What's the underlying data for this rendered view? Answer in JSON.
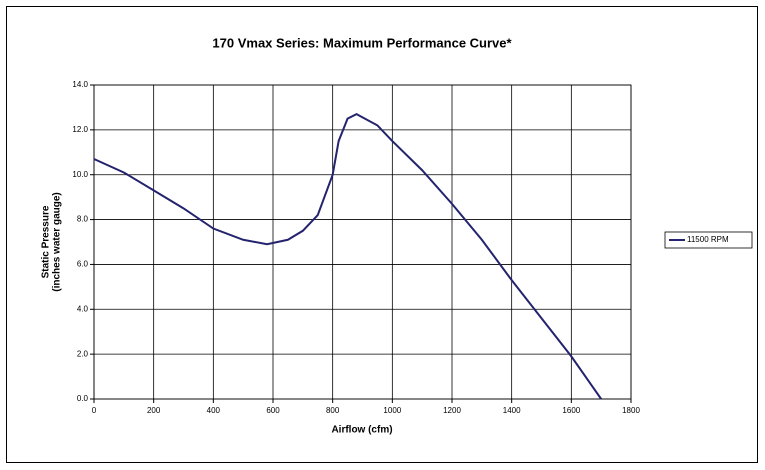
{
  "chart_data": {
    "type": "line",
    "title": "170 Vmax Series: Maximum Performance Curve*",
    "x_label": "Airflow (cfm)",
    "y_label": [
      "Static Pressure",
      "(inches water gauge)"
    ],
    "x": [
      0,
      100,
      200,
      300,
      400,
      500,
      580,
      650,
      700,
      750,
      800,
      820,
      850,
      880,
      950,
      1000,
      1100,
      1200,
      1300,
      1400,
      1500,
      1600,
      1700
    ],
    "series": [
      {
        "name": "11500 RPM",
        "color": "#23236e",
        "values": [
          10.7,
          10.1,
          9.3,
          8.5,
          7.6,
          7.1,
          6.9,
          7.1,
          7.5,
          8.2,
          10.0,
          11.5,
          12.5,
          12.7,
          12.2,
          11.5,
          10.2,
          8.7,
          7.1,
          5.3,
          3.6,
          1.9,
          0.0
        ]
      }
    ],
    "xlim": [
      0,
      1800
    ],
    "xticks": [
      0,
      200,
      400,
      600,
      800,
      1000,
      1200,
      1400,
      1600,
      1800
    ],
    "ylim": [
      0,
      14
    ],
    "yticks": [
      {
        "value": 0,
        "label": "0.0"
      },
      {
        "value": 2,
        "label": "2.0"
      },
      {
        "value": 4,
        "label": "4.0"
      },
      {
        "value": 6,
        "label": "6.0"
      },
      {
        "value": 8,
        "label": "8.0"
      },
      {
        "value": 10,
        "label": "10.0"
      },
      {
        "value": 12,
        "label": "12.0"
      },
      {
        "value": 14,
        "label": "14.0"
      }
    ],
    "grid": true,
    "legend": "right"
  }
}
